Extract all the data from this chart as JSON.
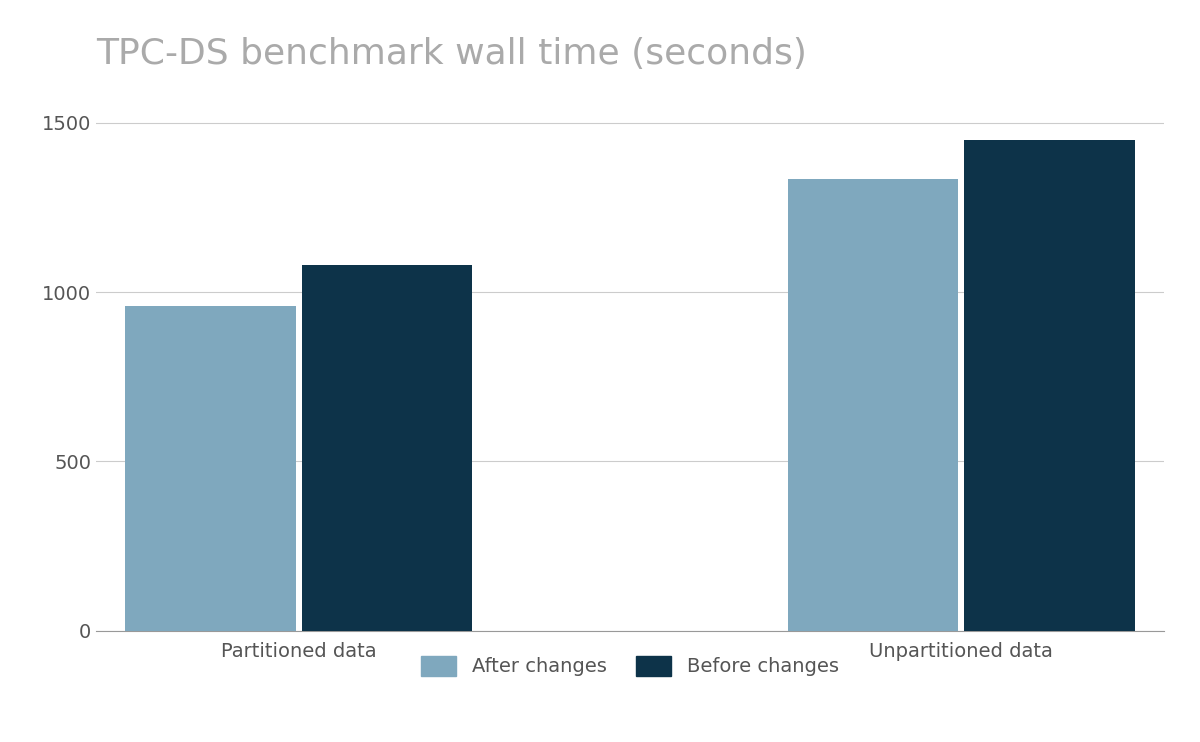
{
  "title": "TPC-DS benchmark wall time (seconds)",
  "categories": [
    "Partitioned data",
    "Unpartitioned data"
  ],
  "after_changes": [
    960,
    1335
  ],
  "before_changes": [
    1080,
    1450
  ],
  "color_after": "#7fa8be",
  "color_before": "#0d3349",
  "ylim": [
    0,
    1600
  ],
  "yticks": [
    0,
    500,
    1000,
    1500
  ],
  "legend_labels": [
    "After changes",
    "Before changes"
  ],
  "background_color": "#ffffff",
  "title_color": "#aaaaaa",
  "title_fontsize": 26,
  "tick_fontsize": 14,
  "legend_fontsize": 14,
  "bar_width": 0.32,
  "group_centers": [
    0.38,
    1.62
  ]
}
